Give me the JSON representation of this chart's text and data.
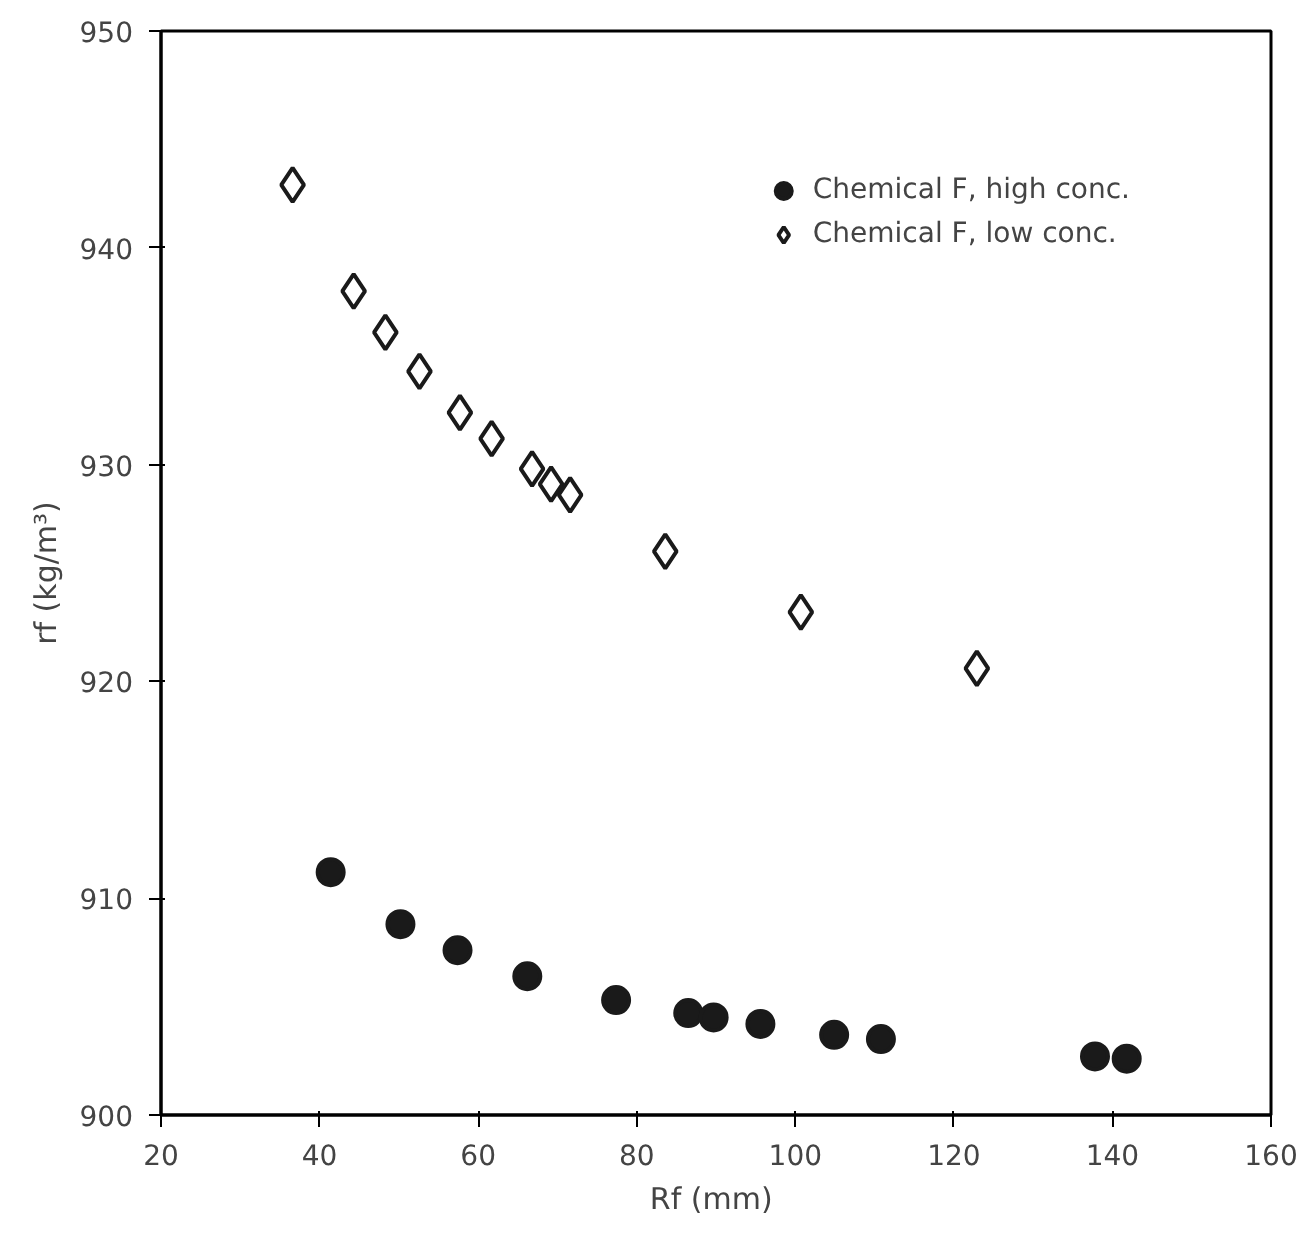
{
  "chart_data": {
    "type": "scatter",
    "xlabel": "Rf  (mm)",
    "ylabel": "rf (kg/m³)",
    "xlim": [
      20,
      160
    ],
    "xticks": [
      20,
      40,
      60,
      80,
      100,
      120,
      140,
      160
    ],
    "ylim": [
      900,
      950
    ],
    "yticks": [
      900,
      910,
      920,
      930,
      940,
      950
    ],
    "grid": false,
    "legend": "top right",
    "series": [
      {
        "name": "Chemical F, high conc.",
        "color": "#1a1a1a",
        "marker": "circle",
        "x": [
          41.4,
          50.2,
          57.4,
          66.2,
          77.4,
          86.5,
          89.7,
          95.6,
          104.9,
          110.8,
          137.8,
          141.8
        ],
        "values": [
          911.2,
          908.8,
          907.6,
          906.4,
          905.3,
          904.7,
          904.5,
          904.2,
          903.7,
          903.5,
          902.7,
          902.6
        ]
      },
      {
        "name": "Chemical F, low conc.",
        "color": "#1a1a1a",
        "marker": "diamond",
        "x": [
          36.6,
          44.3,
          48.3,
          52.6,
          57.7,
          61.7,
          66.8,
          69.2,
          71.6,
          83.6,
          100.7,
          122.9
        ],
        "values": [
          942.9,
          938.0,
          936.1,
          934.3,
          932.4,
          931.2,
          929.8,
          929.1,
          928.6,
          926.0,
          923.2,
          920.6
        ]
      }
    ]
  }
}
